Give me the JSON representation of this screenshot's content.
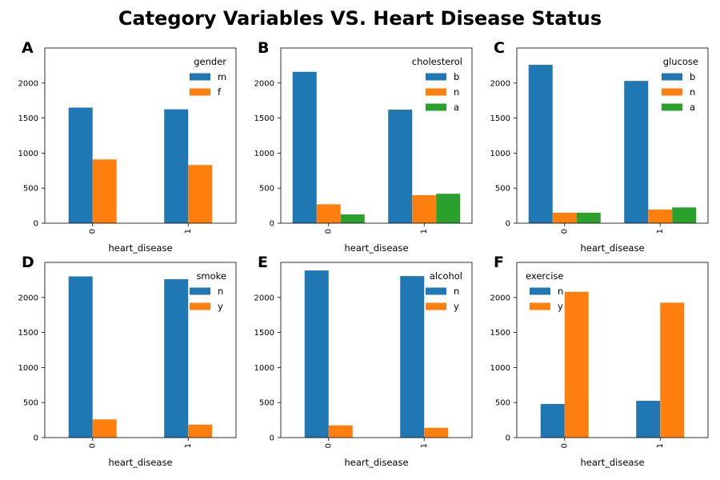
{
  "title": "Category Variables VS. Heart Disease Status",
  "colors": {
    "n_blue": "#1f77b4",
    "orange": "#ff7f0e",
    "green": "#2ca02c"
  },
  "chart_data": [
    {
      "panel": "A",
      "type": "bar",
      "xlabel": "heart_disease",
      "categories": [
        "0",
        "1"
      ],
      "ylim": [
        0,
        2500
      ],
      "yticks": [
        0,
        500,
        1000,
        1500,
        2000
      ],
      "legend": {
        "title": "gender",
        "placement": "upper-right"
      },
      "series": [
        {
          "name": "m",
          "color": "#1f77b4",
          "values": [
            1650,
            1625
          ]
        },
        {
          "name": "f",
          "color": "#ff7f0e",
          "values": [
            910,
            830
          ]
        }
      ]
    },
    {
      "panel": "B",
      "type": "bar",
      "xlabel": "heart_disease",
      "categories": [
        "0",
        "1"
      ],
      "ylim": [
        0,
        2500
      ],
      "yticks": [
        0,
        500,
        1000,
        1500,
        2000
      ],
      "legend": {
        "title": "cholesterol",
        "placement": "upper-right"
      },
      "series": [
        {
          "name": "b",
          "color": "#1f77b4",
          "values": [
            2160,
            1620
          ]
        },
        {
          "name": "n",
          "color": "#ff7f0e",
          "values": [
            270,
            400
          ]
        },
        {
          "name": "a",
          "color": "#2ca02c",
          "values": [
            125,
            420
          ]
        }
      ]
    },
    {
      "panel": "C",
      "type": "bar",
      "xlabel": "heart_disease",
      "categories": [
        "0",
        "1"
      ],
      "ylim": [
        0,
        2500
      ],
      "yticks": [
        0,
        500,
        1000,
        1500,
        2000
      ],
      "legend": {
        "title": "glucose",
        "placement": "upper-right"
      },
      "series": [
        {
          "name": "b",
          "color": "#1f77b4",
          "values": [
            2260,
            2030
          ]
        },
        {
          "name": "n",
          "color": "#ff7f0e",
          "values": [
            150,
            195
          ]
        },
        {
          "name": "a",
          "color": "#2ca02c",
          "values": [
            150,
            225
          ]
        }
      ]
    },
    {
      "panel": "D",
      "type": "bar",
      "xlabel": "heart_disease",
      "categories": [
        "0",
        "1"
      ],
      "ylim": [
        0,
        2500
      ],
      "yticks": [
        0,
        500,
        1000,
        1500,
        2000
      ],
      "legend": {
        "title": "smoke",
        "placement": "upper-right"
      },
      "series": [
        {
          "name": "n",
          "color": "#1f77b4",
          "values": [
            2300,
            2260
          ]
        },
        {
          "name": "y",
          "color": "#ff7f0e",
          "values": [
            260,
            185
          ]
        }
      ]
    },
    {
      "panel": "E",
      "type": "bar",
      "xlabel": "heart_disease",
      "categories": [
        "0",
        "1"
      ],
      "ylim": [
        0,
        2500
      ],
      "yticks": [
        0,
        500,
        1000,
        1500,
        2000
      ],
      "legend": {
        "title": "alcohol",
        "placement": "upper-right"
      },
      "series": [
        {
          "name": "n",
          "color": "#1f77b4",
          "values": [
            2385,
            2305
          ]
        },
        {
          "name": "y",
          "color": "#ff7f0e",
          "values": [
            175,
            140
          ]
        }
      ]
    },
    {
      "panel": "F",
      "type": "bar",
      "xlabel": "heart_disease",
      "categories": [
        "0",
        "1"
      ],
      "ylim": [
        0,
        2500
      ],
      "yticks": [
        0,
        500,
        1000,
        1500,
        2000
      ],
      "legend": {
        "title": "exercise",
        "placement": "upper-left"
      },
      "series": [
        {
          "name": "n",
          "color": "#1f77b4",
          "values": [
            480,
            525
          ]
        },
        {
          "name": "y",
          "color": "#ff7f0e",
          "values": [
            2080,
            1925
          ]
        }
      ]
    }
  ]
}
